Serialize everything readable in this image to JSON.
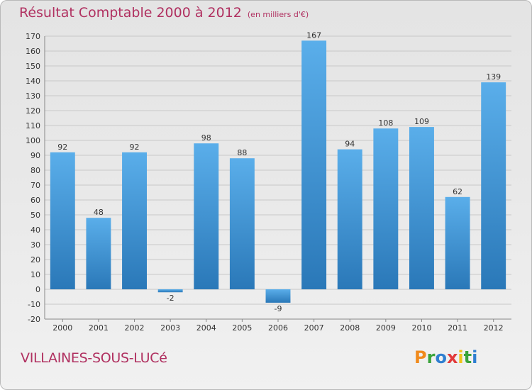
{
  "header": {
    "title": "Résultat Comptable 2000 à 2012",
    "subtitle": "(en milliers d'€)"
  },
  "footer": {
    "commune": "VILLAINES-SOUS-LUCé",
    "brand": "Proxiti"
  },
  "chart_data": {
    "type": "bar",
    "title": "Résultat Comptable 2000 à 2012",
    "subtitle": "(en milliers d'€)",
    "categories": [
      "2000",
      "2001",
      "2002",
      "2003",
      "2004",
      "2005",
      "2006",
      "2007",
      "2008",
      "2009",
      "2010",
      "2011",
      "2012"
    ],
    "values": [
      92,
      48,
      92,
      -2,
      98,
      88,
      -9,
      167,
      94,
      108,
      109,
      62,
      139
    ],
    "ylim": [
      -20,
      170
    ],
    "yticks": [
      -20,
      -10,
      0,
      10,
      20,
      30,
      40,
      50,
      60,
      70,
      80,
      90,
      100,
      110,
      120,
      130,
      140,
      150,
      160,
      170
    ],
    "xlabel": "",
    "ylabel": "",
    "grid": true,
    "bar_color": "#3d8fd6",
    "data_labels": true
  }
}
